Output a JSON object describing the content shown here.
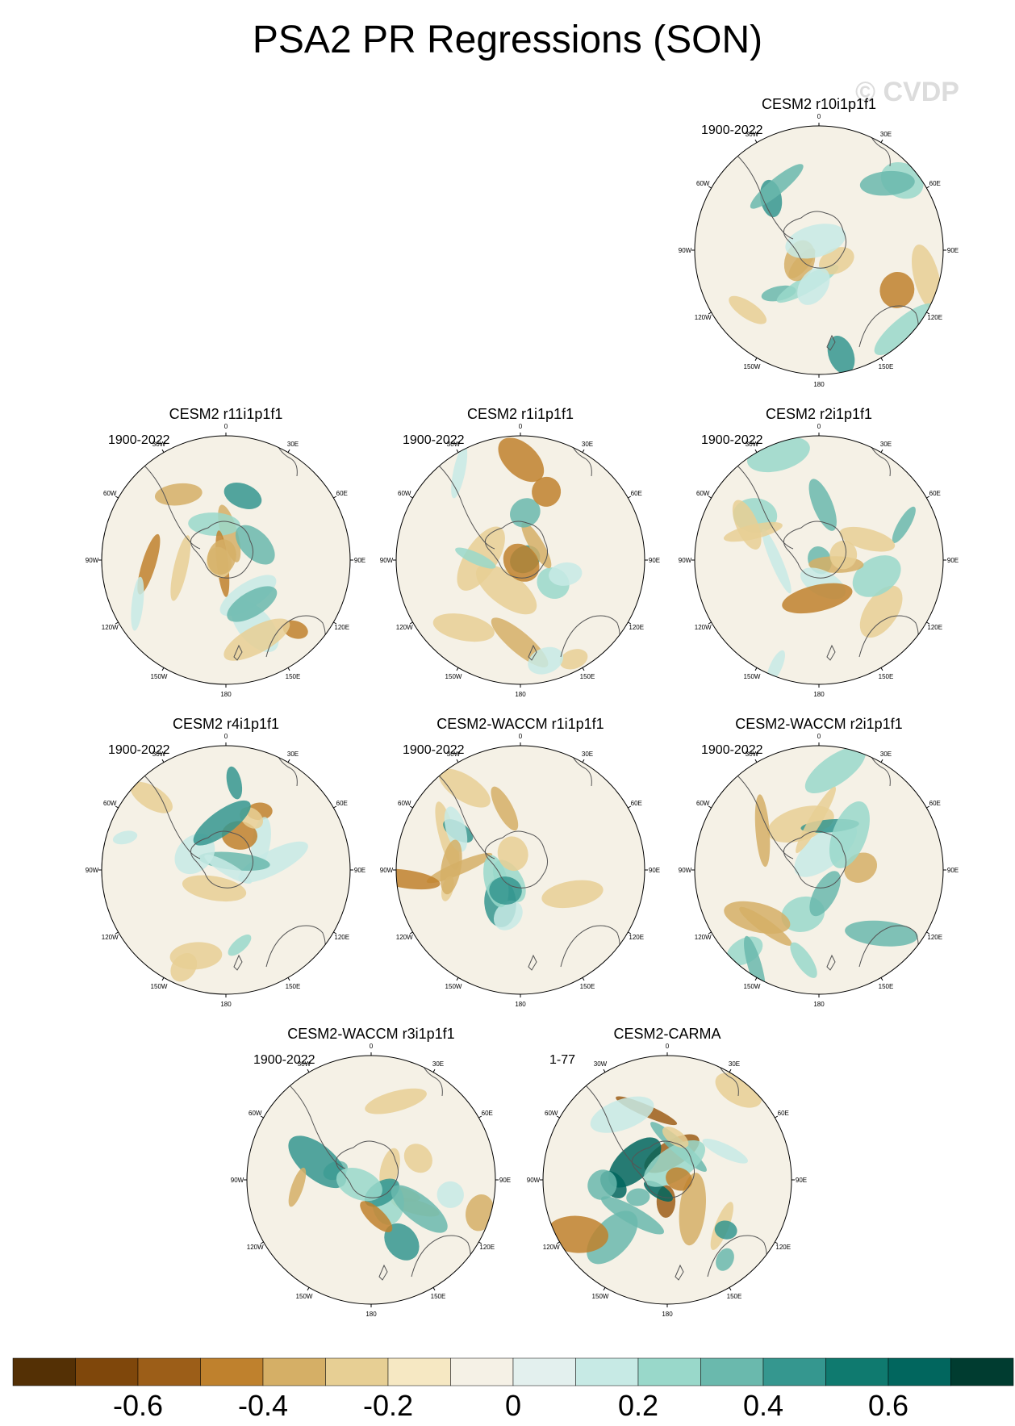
{
  "title": "PSA2 PR Regressions (SON)",
  "watermark": "© CVDP",
  "lon_labels": {
    "0": "0",
    "30E": "30E",
    "60E": "60E",
    "90E": "90E",
    "120E": "120E",
    "150E": "150E",
    "180": "180",
    "150W": "150W",
    "120W": "120W",
    "90W": "90W",
    "60W": "60W",
    "30W": "30W"
  },
  "panels": [
    {
      "name": "CESM2 r10i1p1f1",
      "period": "1900-2022"
    },
    {
      "name": "CESM2 r11i1p1f1",
      "period": "1900-2022"
    },
    {
      "name": "CESM2 r1i1p1f1",
      "period": "1900-2022"
    },
    {
      "name": "CESM2 r2i1p1f1",
      "period": "1900-2022"
    },
    {
      "name": "CESM2 r4i1p1f1",
      "period": "1900-2022"
    },
    {
      "name": "CESM2-WACCM r1i1p1f1",
      "period": "1900-2022"
    },
    {
      "name": "CESM2-WACCM r2i1p1f1",
      "period": "1900-2022"
    },
    {
      "name": "CESM2-WACCM r3i1p1f1",
      "period": "1900-2022"
    },
    {
      "name": "CESM2-CARMA",
      "period": "1-77"
    }
  ],
  "colorbar": {
    "colors": [
      "#543005",
      "#7f470b",
      "#9c5e18",
      "#bf812d",
      "#d5af66",
      "#e7cf94",
      "#f6e8c3",
      "#f5f1e6",
      "#e3f0ee",
      "#c7eae5",
      "#99d8ca",
      "#6ab9ad",
      "#35978f",
      "#0f7a6f",
      "#01665e",
      "#003c30"
    ],
    "labels": [
      "-0.6",
      "-0.4",
      "-0.2",
      "0",
      "0.2",
      "0.4",
      "0.6"
    ],
    "label_values": [
      -0.6,
      -0.4,
      -0.2,
      0,
      0.2,
      0.4,
      0.6
    ]
  }
}
